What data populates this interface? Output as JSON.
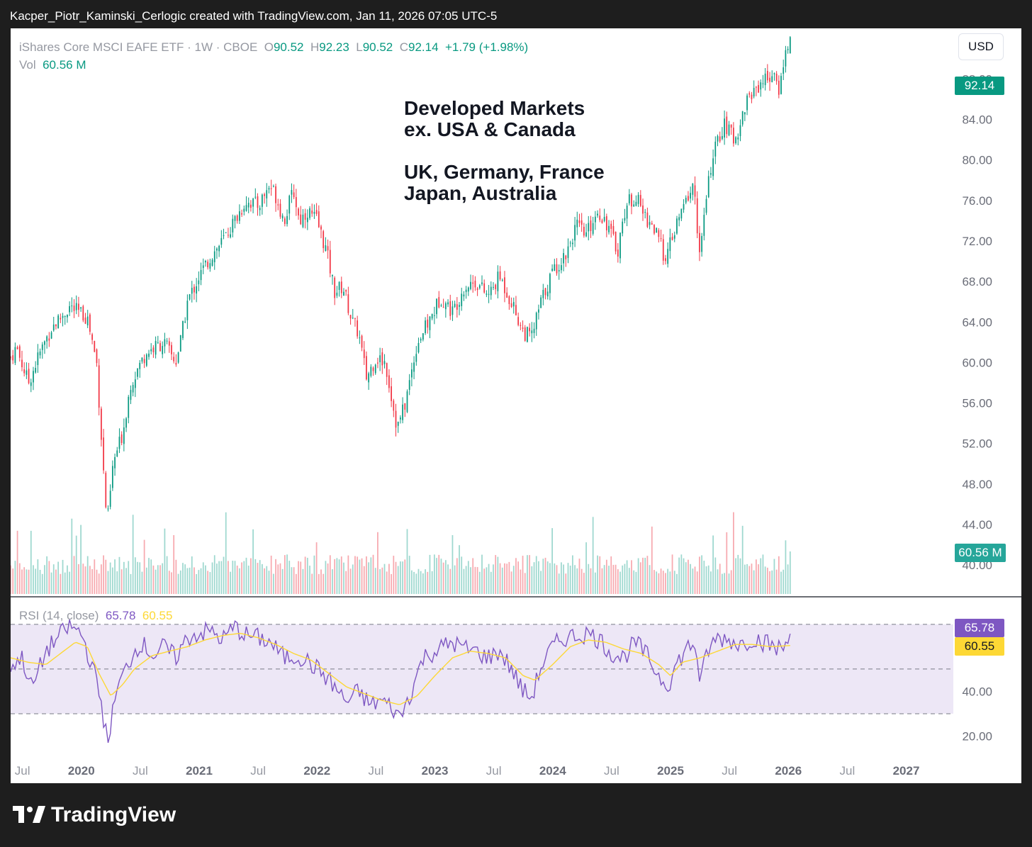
{
  "header": {
    "caption": "Kacper_Piotr_Kaminski_Cerlogic created with TradingView.com, Jan 11, 2026 07:05 UTC-5"
  },
  "legend": {
    "symbol": "iShares Core MSCI EAFE ETF · 1W · CBOE",
    "o_label": "O",
    "o": "90.52",
    "h_label": "H",
    "h": "92.23",
    "l_label": "L",
    "l": "90.52",
    "c_label": "C",
    "c": "92.14",
    "change": "+1.79 (+1.98%)",
    "vol_label": "Vol",
    "vol": "60.56 M"
  },
  "currency_button": "USD",
  "annotation": [
    "Developed Markets",
    "ex. USA & Canada",
    "",
    "UK, Germany, France",
    "Japan, Australia"
  ],
  "price_tags": {
    "last": "92.14",
    "volume": "60.56 M"
  },
  "rsi_legend": {
    "label": "RSI (14, close)",
    "rsi": "65.78",
    "ma": "60.55"
  },
  "rsi_tags": {
    "rsi": "65.78",
    "ma": "60.55"
  },
  "footer": {
    "brand": "TradingView"
  },
  "colors": {
    "up": "#089981",
    "down": "#f23645",
    "rsi": "#7e57c2",
    "rsi_ma": "#fdd835",
    "rsi_band": "#ede7f6"
  },
  "chart_data": [
    {
      "type": "candlestick",
      "title": "iShares Core MSCI EAFE ETF · 1W · CBOE",
      "y_axis": {
        "min": 37,
        "max": 93,
        "ticks": [
          "40.00",
          "44.00",
          "48.00",
          "52.00",
          "56.00",
          "60.00",
          "64.00",
          "68.00",
          "72.00",
          "76.00",
          "80.00",
          "84.00",
          "88.00"
        ]
      },
      "x_axis": {
        "start": 2019.4,
        "end": 2027.4,
        "labels": [
          {
            "t": 2019.5,
            "text": "Jul",
            "year": false
          },
          {
            "t": 2020.0,
            "text": "2020",
            "year": true
          },
          {
            "t": 2020.5,
            "text": "Jul",
            "year": false
          },
          {
            "t": 2021.0,
            "text": "2021",
            "year": true
          },
          {
            "t": 2021.5,
            "text": "Jul",
            "year": false
          },
          {
            "t": 2022.0,
            "text": "2022",
            "year": true
          },
          {
            "t": 2022.5,
            "text": "Jul",
            "year": false
          },
          {
            "t": 2023.0,
            "text": "2023",
            "year": true
          },
          {
            "t": 2023.5,
            "text": "Jul",
            "year": false
          },
          {
            "t": 2024.0,
            "text": "2024",
            "year": true
          },
          {
            "t": 2024.5,
            "text": "Jul",
            "year": false
          },
          {
            "t": 2025.0,
            "text": "2025",
            "year": true
          },
          {
            "t": 2025.5,
            "text": "Jul",
            "year": false
          },
          {
            "t": 2026.0,
            "text": "2026",
            "year": true
          },
          {
            "t": 2026.5,
            "text": "Jul",
            "year": false
          },
          {
            "t": 2027.0,
            "text": "2027",
            "year": true
          }
        ]
      },
      "close_anchors": [
        [
          2019.4,
          60.5
        ],
        [
          2019.45,
          61.5
        ],
        [
          2019.55,
          58.0
        ],
        [
          2019.65,
          61.0
        ],
        [
          2019.75,
          63.5
        ],
        [
          2019.83,
          64.5
        ],
        [
          2019.9,
          65.5
        ],
        [
          2019.97,
          65.0
        ],
        [
          2020.05,
          64.5
        ],
        [
          2020.13,
          60.0
        ],
        [
          2020.2,
          47.0
        ],
        [
          2020.22,
          44.0
        ],
        [
          2020.27,
          50.0
        ],
        [
          2020.35,
          53.0
        ],
        [
          2020.42,
          58.0
        ],
        [
          2020.55,
          61.0
        ],
        [
          2020.7,
          62.0
        ],
        [
          2020.8,
          60.0
        ],
        [
          2020.85,
          62.5
        ],
        [
          2020.9,
          66.0
        ],
        [
          2021.0,
          68.5
        ],
        [
          2021.1,
          70.5
        ],
        [
          2021.2,
          72.0
        ],
        [
          2021.3,
          74.0
        ],
        [
          2021.4,
          76.0
        ],
        [
          2021.5,
          75.5
        ],
        [
          2021.6,
          77.5
        ],
        [
          2021.65,
          76.5
        ],
        [
          2021.72,
          74.0
        ],
        [
          2021.8,
          77.0
        ],
        [
          2021.85,
          74.0
        ],
        [
          2021.92,
          75.0
        ],
        [
          2022.0,
          74.0
        ],
        [
          2022.08,
          71.0
        ],
        [
          2022.15,
          67.0
        ],
        [
          2022.22,
          67.5
        ],
        [
          2022.3,
          64.0
        ],
        [
          2022.35,
          63.0
        ],
        [
          2022.42,
          58.5
        ],
        [
          2022.5,
          60.5
        ],
        [
          2022.58,
          60.0
        ],
        [
          2022.68,
          53.5
        ],
        [
          2022.75,
          56.0
        ],
        [
          2022.85,
          62.0
        ],
        [
          2022.95,
          64.0
        ],
        [
          2023.05,
          66.5
        ],
        [
          2023.15,
          65.0
        ],
        [
          2023.25,
          67.5
        ],
        [
          2023.35,
          68.0
        ],
        [
          2023.45,
          66.5
        ],
        [
          2023.55,
          68.5
        ],
        [
          2023.65,
          66.0
        ],
        [
          2023.75,
          63.0
        ],
        [
          2023.82,
          62.5
        ],
        [
          2023.9,
          66.0
        ],
        [
          2024.0,
          69.0
        ],
        [
          2024.1,
          70.5
        ],
        [
          2024.2,
          73.5
        ],
        [
          2024.28,
          72.5
        ],
        [
          2024.38,
          75.0
        ],
        [
          2024.45,
          74.0
        ],
        [
          2024.55,
          71.0
        ],
        [
          2024.62,
          75.5
        ],
        [
          2024.7,
          76.5
        ],
        [
          2024.78,
          74.5
        ],
        [
          2024.85,
          73.5
        ],
        [
          2024.95,
          70.5
        ],
        [
          2024.98,
          71.0
        ],
        [
          2025.05,
          73.5
        ],
        [
          2025.15,
          76.5
        ],
        [
          2025.2,
          77.5
        ],
        [
          2025.25,
          70.0
        ],
        [
          2025.28,
          74.0
        ],
        [
          2025.35,
          80.0
        ],
        [
          2025.45,
          83.5
        ],
        [
          2025.55,
          82.0
        ],
        [
          2025.65,
          86.0
        ],
        [
          2025.75,
          87.5
        ],
        [
          2025.85,
          88.5
        ],
        [
          2025.92,
          87.0
        ],
        [
          2025.97,
          90.3
        ],
        [
          2026.02,
          92.14
        ]
      ],
      "volume_axis_note": "volume bars at bottom of price pane",
      "last": {
        "o": 90.52,
        "h": 92.23,
        "l": 90.52,
        "c": 92.14,
        "vol_m": 60.56
      }
    },
    {
      "type": "line",
      "title": "RSI (14, close)",
      "y_axis": {
        "min": 10,
        "max": 82,
        "ticks": [
          "20.00",
          "40.00"
        ],
        "bands": [
          30,
          50,
          70
        ]
      },
      "series": [
        {
          "name": "RSI",
          "anchors": [
            [
              2019.4,
              52
            ],
            [
              2019.5,
              55
            ],
            [
              2019.58,
              41
            ],
            [
              2019.7,
              58
            ],
            [
              2019.8,
              64
            ],
            [
              2019.9,
              69
            ],
            [
              2020.0,
              66
            ],
            [
              2020.1,
              50
            ],
            [
              2020.17,
              35
            ],
            [
              2020.22,
              17
            ],
            [
              2020.3,
              40
            ],
            [
              2020.4,
              53
            ],
            [
              2020.5,
              62
            ],
            [
              2020.62,
              56
            ],
            [
              2020.7,
              60
            ],
            [
              2020.8,
              55
            ],
            [
              2020.9,
              64
            ],
            [
              2021.0,
              66
            ],
            [
              2021.1,
              67
            ],
            [
              2021.2,
              63
            ],
            [
              2021.3,
              69
            ],
            [
              2021.4,
              65
            ],
            [
              2021.5,
              64
            ],
            [
              2021.6,
              62
            ],
            [
              2021.72,
              55
            ],
            [
              2021.85,
              56
            ],
            [
              2021.95,
              52
            ],
            [
              2022.05,
              48
            ],
            [
              2022.15,
              42
            ],
            [
              2022.25,
              35
            ],
            [
              2022.35,
              40
            ],
            [
              2022.45,
              34
            ],
            [
              2022.55,
              36
            ],
            [
              2022.65,
              32
            ],
            [
              2022.7,
              28
            ],
            [
              2022.8,
              40
            ],
            [
              2022.9,
              55
            ],
            [
              2023.0,
              58
            ],
            [
              2023.15,
              62
            ],
            [
              2023.25,
              59
            ],
            [
              2023.35,
              58
            ],
            [
              2023.45,
              55
            ],
            [
              2023.55,
              58
            ],
            [
              2023.65,
              50
            ],
            [
              2023.75,
              40
            ],
            [
              2023.82,
              37
            ],
            [
              2023.9,
              51
            ],
            [
              2024.0,
              60
            ],
            [
              2024.1,
              64
            ],
            [
              2024.2,
              65
            ],
            [
              2024.3,
              66
            ],
            [
              2024.4,
              63
            ],
            [
              2024.5,
              57
            ],
            [
              2024.6,
              55
            ],
            [
              2024.7,
              62
            ],
            [
              2024.8,
              56
            ],
            [
              2024.9,
              47
            ],
            [
              2024.98,
              43
            ],
            [
              2025.05,
              52
            ],
            [
              2025.15,
              60
            ],
            [
              2025.22,
              61
            ],
            [
              2025.25,
              40
            ],
            [
              2025.3,
              57
            ],
            [
              2025.4,
              64
            ],
            [
              2025.5,
              63
            ],
            [
              2025.6,
              61
            ],
            [
              2025.7,
              64
            ],
            [
              2025.8,
              62
            ],
            [
              2025.9,
              59
            ],
            [
              2025.97,
              60
            ],
            [
              2026.02,
              65.78
            ]
          ]
        },
        {
          "name": "RSI-based MA",
          "anchors": [
            [
              2019.4,
              55
            ],
            [
              2019.55,
              53
            ],
            [
              2019.7,
              52
            ],
            [
              2019.85,
              58
            ],
            [
              2019.95,
              62
            ],
            [
              2020.05,
              60
            ],
            [
              2020.15,
              48
            ],
            [
              2020.25,
              38
            ],
            [
              2020.35,
              43
            ],
            [
              2020.45,
              50
            ],
            [
              2020.6,
              56
            ],
            [
              2020.75,
              58
            ],
            [
              2020.9,
              60
            ],
            [
              2021.05,
              63
            ],
            [
              2021.2,
              65
            ],
            [
              2021.35,
              66
            ],
            [
              2021.5,
              64
            ],
            [
              2021.65,
              61
            ],
            [
              2021.8,
              57
            ],
            [
              2021.95,
              54
            ],
            [
              2022.1,
              48
            ],
            [
              2022.25,
              42
            ],
            [
              2022.4,
              39
            ],
            [
              2022.55,
              36
            ],
            [
              2022.7,
              34
            ],
            [
              2022.85,
              38
            ],
            [
              2023.0,
              47
            ],
            [
              2023.15,
              55
            ],
            [
              2023.3,
              58
            ],
            [
              2023.45,
              57
            ],
            [
              2023.6,
              55
            ],
            [
              2023.75,
              47
            ],
            [
              2023.85,
              45
            ],
            [
              2024.0,
              52
            ],
            [
              2024.15,
              60
            ],
            [
              2024.3,
              63
            ],
            [
              2024.45,
              62
            ],
            [
              2024.6,
              59
            ],
            [
              2024.75,
              57
            ],
            [
              2024.9,
              52
            ],
            [
              2025.0,
              47
            ],
            [
              2025.1,
              53
            ],
            [
              2025.25,
              55
            ],
            [
              2025.4,
              58
            ],
            [
              2025.55,
              61
            ],
            [
              2025.7,
              61
            ],
            [
              2025.85,
              60
            ],
            [
              2026.02,
              60.55
            ]
          ]
        }
      ]
    }
  ]
}
